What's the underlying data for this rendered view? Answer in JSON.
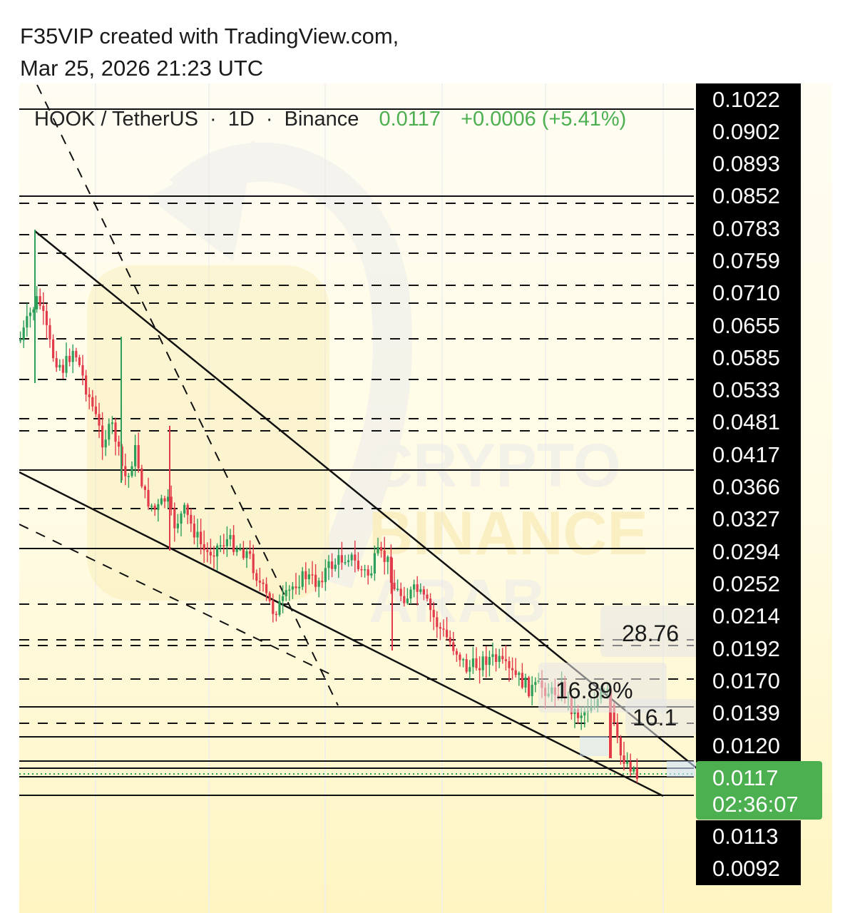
{
  "header": {
    "line1": "F35VIP created with TradingView.com,",
    "line2": "Mar 25, 2026 21:23 UTC"
  },
  "symbol_bar": {
    "pair": "HOOK / TetherUS",
    "interval": "1D",
    "exchange": "Binance",
    "sep": "·",
    "price": "0.0117",
    "change": "+0.0006 (+5.41%)"
  },
  "watermark": {
    "line1": "CRYPTO",
    "line2": "BINANCE",
    "line3": "ARAB"
  },
  "colors": {
    "up": "#2e9e5b",
    "down": "#e23b4a",
    "price_tag": "#4caf50",
    "axis_bg": "#000000",
    "gradient_top": "#fffdf2",
    "gradient_bottom": "#fff6c4"
  },
  "price_axis": {
    "labels": [
      "0.1022",
      "0.0902",
      "0.0893",
      "0.0852",
      "0.0783",
      "0.0759",
      "0.0710",
      "0.0655",
      "0.0585",
      "0.0533",
      "0.0481",
      "0.0417",
      "0.0366",
      "0.0327",
      "0.0294",
      "0.0252",
      "0.0214",
      "0.0192",
      "0.0170",
      "0.0139",
      "0.0120",
      "0.0113",
      "0.0092"
    ],
    "current_price": "0.0117",
    "countdown": "02:36:07"
  },
  "annotations": {
    "pct_a": "28.76",
    "pct_b": "16.89%",
    "pct_c": "16.1"
  },
  "chart_data": {
    "type": "candlestick",
    "symbol": "HOOK / TetherUS",
    "interval": "1D",
    "exchange": "Binance",
    "last": 0.0117,
    "change": 0.0006,
    "change_pct": 5.41,
    "ylim": [
      0.0092,
      0.1022
    ],
    "levels": [
      0.0902,
      0.0893,
      0.0852,
      0.0783,
      0.0759,
      0.071,
      0.0655,
      0.0585,
      0.0533,
      0.0481,
      0.0417,
      0.0366,
      0.0327,
      0.0294,
      0.0252,
      0.0214,
      0.0192,
      0.017,
      0.0139,
      0.012,
      0.0117,
      0.0113
    ],
    "approx_closes": [
      0.068,
      0.066,
      0.064,
      0.058,
      0.055,
      0.053,
      0.05,
      0.046,
      0.043,
      0.041,
      0.038,
      0.037,
      0.034,
      0.033,
      0.031,
      0.029,
      0.027,
      0.025,
      0.023,
      0.022,
      0.024,
      0.026,
      0.028,
      0.027,
      0.025,
      0.022,
      0.02,
      0.019,
      0.018,
      0.017,
      0.016,
      0.015,
      0.015,
      0.014,
      0.013,
      0.014,
      0.013,
      0.012,
      0.0117
    ]
  }
}
